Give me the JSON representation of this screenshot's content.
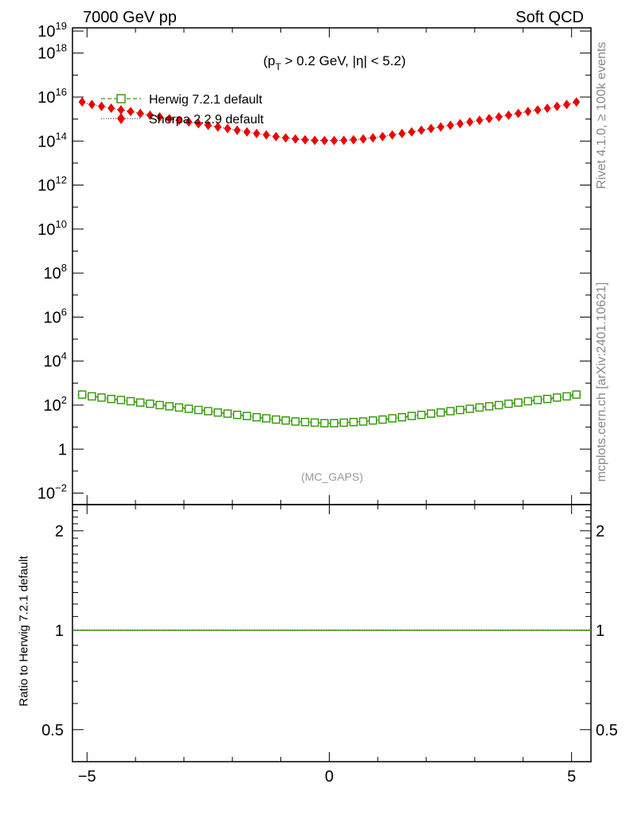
{
  "header": {
    "left": "7000 GeV pp",
    "right": "Soft QCD"
  },
  "side_labels": {
    "upper": "Rivet 4.1.0, ≥ 100k events",
    "lower": "mcplots.cern.ch [arXiv:2401.10621]"
  },
  "chart_data": {
    "type": "scatter",
    "cuts": {
      "open": "(p",
      "sub": "T",
      "rest": " > 0.2 GeV, |η| < 5.2)"
    },
    "analysis": "(MC_GAPS)",
    "legend_position": "top-left",
    "x": [
      -5.1,
      -4.9,
      -4.7,
      -4.5,
      -4.3,
      -4.1,
      -3.9,
      -3.7,
      -3.5,
      -3.3,
      -3.1,
      -2.9,
      -2.7,
      -2.5,
      -2.3,
      -2.1,
      -1.9,
      -1.7,
      -1.5,
      -1.3,
      -1.1,
      -0.9,
      -0.7,
      -0.5,
      -0.3,
      -0.1,
      0.1,
      0.3,
      0.5,
      0.7,
      0.9,
      1.1,
      1.3,
      1.5,
      1.7,
      1.9,
      2.1,
      2.3,
      2.5,
      2.7,
      2.9,
      3.1,
      3.3,
      3.5,
      3.7,
      3.9,
      4.1,
      4.3,
      4.5,
      4.7,
      4.9,
      5.1
    ],
    "xlim": [
      -5.3,
      5.4
    ],
    "xticks": [
      -5,
      0,
      5
    ],
    "xtick_labels": [
      "−5",
      "0",
      "5"
    ],
    "series": [
      {
        "name": "Herwig 7.2.1 default",
        "color": "#3a9b0f",
        "marker": "open-square",
        "line": "dashed",
        "values": [
          300,
          250,
          220,
          190,
          170,
          150,
          130,
          115,
          100,
          88,
          78,
          68,
          60,
          53,
          46,
          41,
          36,
          32,
          28,
          25,
          22,
          20,
          18,
          17,
          16,
          15,
          15,
          16,
          17,
          18,
          20,
          22,
          25,
          28,
          32,
          36,
          41,
          46,
          53,
          60,
          68,
          78,
          88,
          100,
          115,
          130,
          150,
          170,
          190,
          220,
          250,
          300
        ]
      },
      {
        "name": "Sherpa 2.2.9 default",
        "color": "#ee0000",
        "marker": "filled-diamond",
        "line": "dotted",
        "values": [
          6000000000000000.0,
          4600000000000000.0,
          3800000000000000.0,
          3100000000000000.0,
          2600000000000000.0,
          2200000000000000.0,
          1800000000000000.0,
          1500000000000000.0,
          1250000000000000.0,
          1050000000000000.0,
          880000000000000.0,
          740000000000000.0,
          620000000000000.0,
          520000000000000.0,
          440000000000000.0,
          370000000000000.0,
          310000000000000.0,
          260000000000000.0,
          220000000000000.0,
          190000000000000.0,
          160000000000000.0,
          140000000000000.0,
          125000000000000.0,
          115000000000000.0,
          108000000000000.0,
          105000000000000.0,
          105000000000000.0,
          108000000000000.0,
          115000000000000.0,
          125000000000000.0,
          140000000000000.0,
          160000000000000.0,
          190000000000000.0,
          220000000000000.0,
          260000000000000.0,
          310000000000000.0,
          370000000000000.0,
          440000000000000.0,
          520000000000000.0,
          620000000000000.0,
          740000000000000.0,
          880000000000000.0,
          1050000000000000.0,
          1250000000000000.0,
          1500000000000000.0,
          1800000000000000.0,
          2200000000000000.0,
          2600000000000000.0,
          3100000000000000.0,
          3800000000000000.0,
          4600000000000000.0,
          6000000000000000.0
        ]
      }
    ],
    "main_panel": {
      "scale": "log",
      "ylim": [
        0.003,
        1.4e+19
      ],
      "tick_exponents": [
        -2,
        0,
        2,
        4,
        6,
        8,
        10,
        12,
        14,
        16,
        18,
        19
      ],
      "tick_labels": [
        {
          "base": "10",
          "exp": "−2"
        },
        {
          "base": "1",
          "exp": ""
        },
        {
          "base": "10",
          "exp": "2"
        },
        {
          "base": "10",
          "exp": "4"
        },
        {
          "base": "10",
          "exp": "6"
        },
        {
          "base": "10",
          "exp": "8"
        },
        {
          "base": "10",
          "exp": "10"
        },
        {
          "base": "10",
          "exp": "12"
        },
        {
          "base": "10",
          "exp": "14"
        },
        {
          "base": "10",
          "exp": "16"
        },
        {
          "base": "10",
          "exp": "18"
        },
        {
          "base": "10",
          "exp": "19"
        }
      ]
    },
    "ratio_panel": {
      "ylabel": "Ratio to Herwig 7.2.1 default",
      "scale": "log",
      "ylim": [
        0.4,
        2.4
      ],
      "ticks": [
        0.5,
        1,
        2
      ],
      "tick_labels": [
        "0.5",
        "1",
        "2"
      ],
      "ratio_values": 1.0
    }
  }
}
